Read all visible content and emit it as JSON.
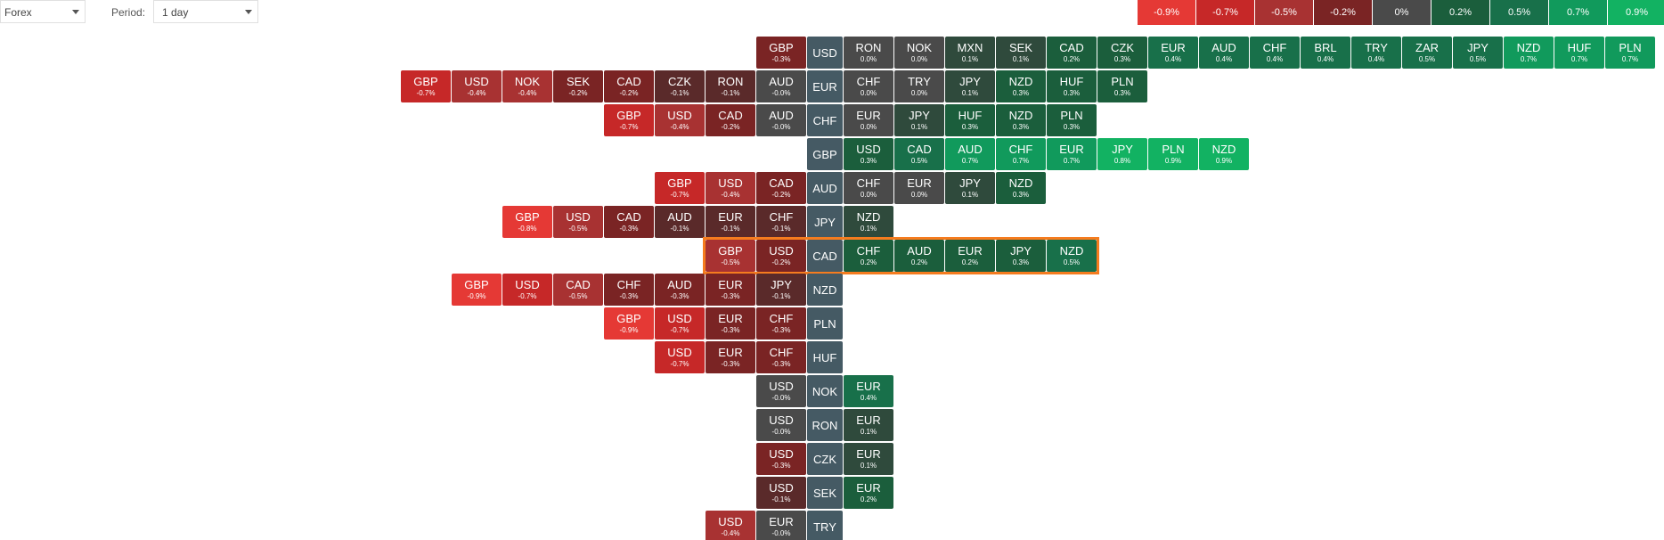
{
  "toolbar": {
    "market": "Forex",
    "period_label": "Period:",
    "period": "1 day"
  },
  "legend": [
    {
      "label": "-0.9%",
      "color": "#e53935"
    },
    {
      "label": "-0.7%",
      "color": "#c62828"
    },
    {
      "label": "-0.5%",
      "color": "#a83232"
    },
    {
      "label": "-0.2%",
      "color": "#7a2424"
    },
    {
      "label": "0%",
      "color": "#4a4a4a"
    },
    {
      "label": "0.2%",
      "color": "#1b5e3c"
    },
    {
      "label": "0.5%",
      "color": "#18704a"
    },
    {
      "label": "0.7%",
      "color": "#119a5c"
    },
    {
      "label": "0.9%",
      "color": "#12b262"
    }
  ],
  "highlighted_row": "CAD",
  "rows": [
    {
      "base": "USD",
      "left": [
        {
          "s": "GBP",
          "c": "-0.3%"
        }
      ],
      "right": [
        {
          "s": "RON",
          "c": "0.0%"
        },
        {
          "s": "NOK",
          "c": "0.0%"
        },
        {
          "s": "MXN",
          "c": "0.1%"
        },
        {
          "s": "SEK",
          "c": "0.1%"
        },
        {
          "s": "CAD",
          "c": "0.2%"
        },
        {
          "s": "CZK",
          "c": "0.3%"
        },
        {
          "s": "EUR",
          "c": "0.4%"
        },
        {
          "s": "AUD",
          "c": "0.4%"
        },
        {
          "s": "CHF",
          "c": "0.4%"
        },
        {
          "s": "BRL",
          "c": "0.4%"
        },
        {
          "s": "TRY",
          "c": "0.4%"
        },
        {
          "s": "ZAR",
          "c": "0.5%"
        },
        {
          "s": "JPY",
          "c": "0.5%"
        },
        {
          "s": "NZD",
          "c": "0.7%"
        },
        {
          "s": "HUF",
          "c": "0.7%"
        },
        {
          "s": "PLN",
          "c": "0.7%"
        }
      ]
    },
    {
      "base": "EUR",
      "left": [
        {
          "s": "GBP",
          "c": "-0.7%"
        },
        {
          "s": "USD",
          "c": "-0.4%"
        },
        {
          "s": "NOK",
          "c": "-0.4%"
        },
        {
          "s": "SEK",
          "c": "-0.2%"
        },
        {
          "s": "CAD",
          "c": "-0.2%"
        },
        {
          "s": "CZK",
          "c": "-0.1%"
        },
        {
          "s": "RON",
          "c": "-0.1%"
        },
        {
          "s": "AUD",
          "c": "-0.0%"
        }
      ],
      "right": [
        {
          "s": "CHF",
          "c": "0.0%"
        },
        {
          "s": "TRY",
          "c": "0.0%"
        },
        {
          "s": "JPY",
          "c": "0.1%"
        },
        {
          "s": "NZD",
          "c": "0.3%"
        },
        {
          "s": "HUF",
          "c": "0.3%"
        },
        {
          "s": "PLN",
          "c": "0.3%"
        }
      ]
    },
    {
      "base": "CHF",
      "left": [
        {
          "s": "GBP",
          "c": "-0.7%"
        },
        {
          "s": "USD",
          "c": "-0.4%"
        },
        {
          "s": "CAD",
          "c": "-0.2%"
        },
        {
          "s": "AUD",
          "c": "-0.0%"
        }
      ],
      "right": [
        {
          "s": "EUR",
          "c": "0.0%"
        },
        {
          "s": "JPY",
          "c": "0.1%"
        },
        {
          "s": "HUF",
          "c": "0.3%"
        },
        {
          "s": "NZD",
          "c": "0.3%"
        },
        {
          "s": "PLN",
          "c": "0.3%"
        }
      ]
    },
    {
      "base": "GBP",
      "left": [],
      "right": [
        {
          "s": "USD",
          "c": "0.3%"
        },
        {
          "s": "CAD",
          "c": "0.5%"
        },
        {
          "s": "AUD",
          "c": "0.7%"
        },
        {
          "s": "CHF",
          "c": "0.7%"
        },
        {
          "s": "EUR",
          "c": "0.7%"
        },
        {
          "s": "JPY",
          "c": "0.8%"
        },
        {
          "s": "PLN",
          "c": "0.9%"
        },
        {
          "s": "NZD",
          "c": "0.9%"
        }
      ]
    },
    {
      "base": "AUD",
      "left": [
        {
          "s": "GBP",
          "c": "-0.7%"
        },
        {
          "s": "USD",
          "c": "-0.4%"
        },
        {
          "s": "CAD",
          "c": "-0.2%"
        }
      ],
      "right": [
        {
          "s": "CHF",
          "c": "0.0%"
        },
        {
          "s": "EUR",
          "c": "0.0%"
        },
        {
          "s": "JPY",
          "c": "0.1%"
        },
        {
          "s": "NZD",
          "c": "0.3%"
        }
      ]
    },
    {
      "base": "JPY",
      "left": [
        {
          "s": "GBP",
          "c": "-0.8%"
        },
        {
          "s": "USD",
          "c": "-0.5%"
        },
        {
          "s": "CAD",
          "c": "-0.3%"
        },
        {
          "s": "AUD",
          "c": "-0.1%"
        },
        {
          "s": "EUR",
          "c": "-0.1%"
        },
        {
          "s": "CHF",
          "c": "-0.1%"
        }
      ],
      "right": [
        {
          "s": "NZD",
          "c": "0.1%"
        }
      ]
    },
    {
      "base": "CAD",
      "left": [
        {
          "s": "GBP",
          "c": "-0.5%"
        },
        {
          "s": "USD",
          "c": "-0.2%"
        }
      ],
      "right": [
        {
          "s": "CHF",
          "c": "0.2%"
        },
        {
          "s": "AUD",
          "c": "0.2%"
        },
        {
          "s": "EUR",
          "c": "0.2%"
        },
        {
          "s": "JPY",
          "c": "0.3%"
        },
        {
          "s": "NZD",
          "c": "0.5%"
        }
      ]
    },
    {
      "base": "NZD",
      "left": [
        {
          "s": "GBP",
          "c": "-0.9%"
        },
        {
          "s": "USD",
          "c": "-0.7%"
        },
        {
          "s": "CAD",
          "c": "-0.5%"
        },
        {
          "s": "CHF",
          "c": "-0.3%"
        },
        {
          "s": "AUD",
          "c": "-0.3%"
        },
        {
          "s": "EUR",
          "c": "-0.3%"
        },
        {
          "s": "JPY",
          "c": "-0.1%"
        }
      ],
      "right": []
    },
    {
      "base": "PLN",
      "left": [
        {
          "s": "GBP",
          "c": "-0.9%"
        },
        {
          "s": "USD",
          "c": "-0.7%"
        },
        {
          "s": "EUR",
          "c": "-0.3%"
        },
        {
          "s": "CHF",
          "c": "-0.3%"
        }
      ],
      "right": []
    },
    {
      "base": "HUF",
      "left": [
        {
          "s": "USD",
          "c": "-0.7%"
        },
        {
          "s": "EUR",
          "c": "-0.3%"
        },
        {
          "s": "CHF",
          "c": "-0.3%"
        }
      ],
      "right": []
    },
    {
      "base": "NOK",
      "left": [
        {
          "s": "USD",
          "c": "-0.0%"
        }
      ],
      "right": [
        {
          "s": "EUR",
          "c": "0.4%"
        }
      ]
    },
    {
      "base": "RON",
      "left": [
        {
          "s": "USD",
          "c": "-0.0%"
        }
      ],
      "right": [
        {
          "s": "EUR",
          "c": "0.1%"
        }
      ]
    },
    {
      "base": "CZK",
      "left": [
        {
          "s": "USD",
          "c": "-0.3%"
        }
      ],
      "right": [
        {
          "s": "EUR",
          "c": "0.1%"
        }
      ]
    },
    {
      "base": "SEK",
      "left": [
        {
          "s": "USD",
          "c": "-0.1%"
        }
      ],
      "right": [
        {
          "s": "EUR",
          "c": "0.2%"
        }
      ]
    },
    {
      "base": "TRY",
      "left": [
        {
          "s": "USD",
          "c": "-0.4%"
        },
        {
          "s": "EUR",
          "c": "-0.0%"
        }
      ],
      "right": []
    }
  ]
}
